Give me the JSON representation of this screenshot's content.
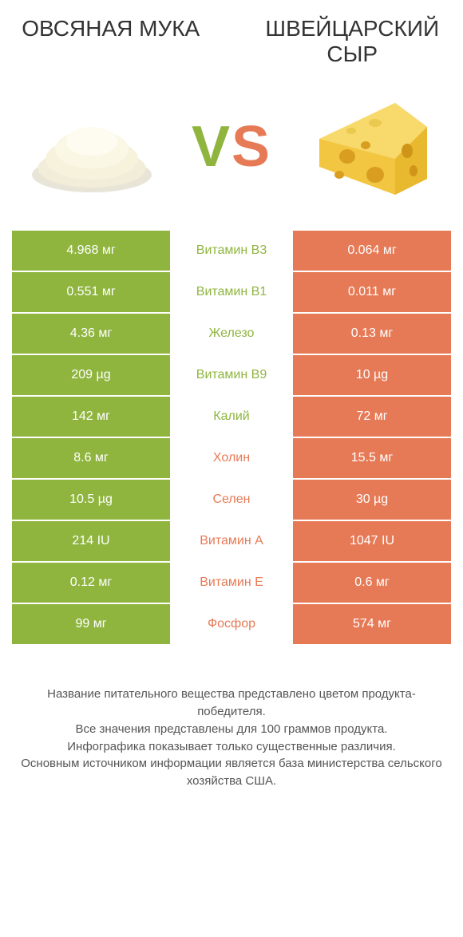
{
  "colors": {
    "green": "#8fb53f",
    "orange": "#e77a56",
    "text_green": "#8fb53f",
    "text_orange": "#e77a56"
  },
  "header": {
    "left_title": "ОВСЯНАЯ МУКА",
    "right_title": "ШВЕЙЦАРСКИЙ СЫР"
  },
  "vs": {
    "v": "V",
    "s": "S"
  },
  "rows": [
    {
      "left": "4.968 мг",
      "mid": "Витамин B3",
      "right": "0.064 мг",
      "left_bg": "green",
      "right_bg": "orange",
      "mid_color": "green"
    },
    {
      "left": "0.551 мг",
      "mid": "Витамин B1",
      "right": "0.011 мг",
      "left_bg": "green",
      "right_bg": "orange",
      "mid_color": "green"
    },
    {
      "left": "4.36 мг",
      "mid": "Железо",
      "right": "0.13 мг",
      "left_bg": "green",
      "right_bg": "orange",
      "mid_color": "green"
    },
    {
      "left": "209 µg",
      "mid": "Витамин B9",
      "right": "10 µg",
      "left_bg": "green",
      "right_bg": "orange",
      "mid_color": "green"
    },
    {
      "left": "142 мг",
      "mid": "Калий",
      "right": "72 мг",
      "left_bg": "green",
      "right_bg": "orange",
      "mid_color": "green"
    },
    {
      "left": "8.6 мг",
      "mid": "Холин",
      "right": "15.5 мг",
      "left_bg": "green",
      "right_bg": "orange",
      "mid_color": "orange"
    },
    {
      "left": "10.5 µg",
      "mid": "Селен",
      "right": "30 µg",
      "left_bg": "green",
      "right_bg": "orange",
      "mid_color": "orange"
    },
    {
      "left": "214 IU",
      "mid": "Витамин A",
      "right": "1047 IU",
      "left_bg": "green",
      "right_bg": "orange",
      "mid_color": "orange"
    },
    {
      "left": "0.12 мг",
      "mid": "Витамин E",
      "right": "0.6 мг",
      "left_bg": "green",
      "right_bg": "orange",
      "mid_color": "orange"
    },
    {
      "left": "99 мг",
      "mid": "Фосфор",
      "right": "574 мг",
      "left_bg": "green",
      "right_bg": "orange",
      "mid_color": "orange"
    }
  ],
  "footer": {
    "line1": "Название питательного вещества представлено цветом продукта-победителя.",
    "line2": "Все значения представлены для 100 граммов продукта.",
    "line3": "Инфографика показывает только существенные различия.",
    "line4": "Основным источником информации является база министерства сельского хозяйства США."
  }
}
